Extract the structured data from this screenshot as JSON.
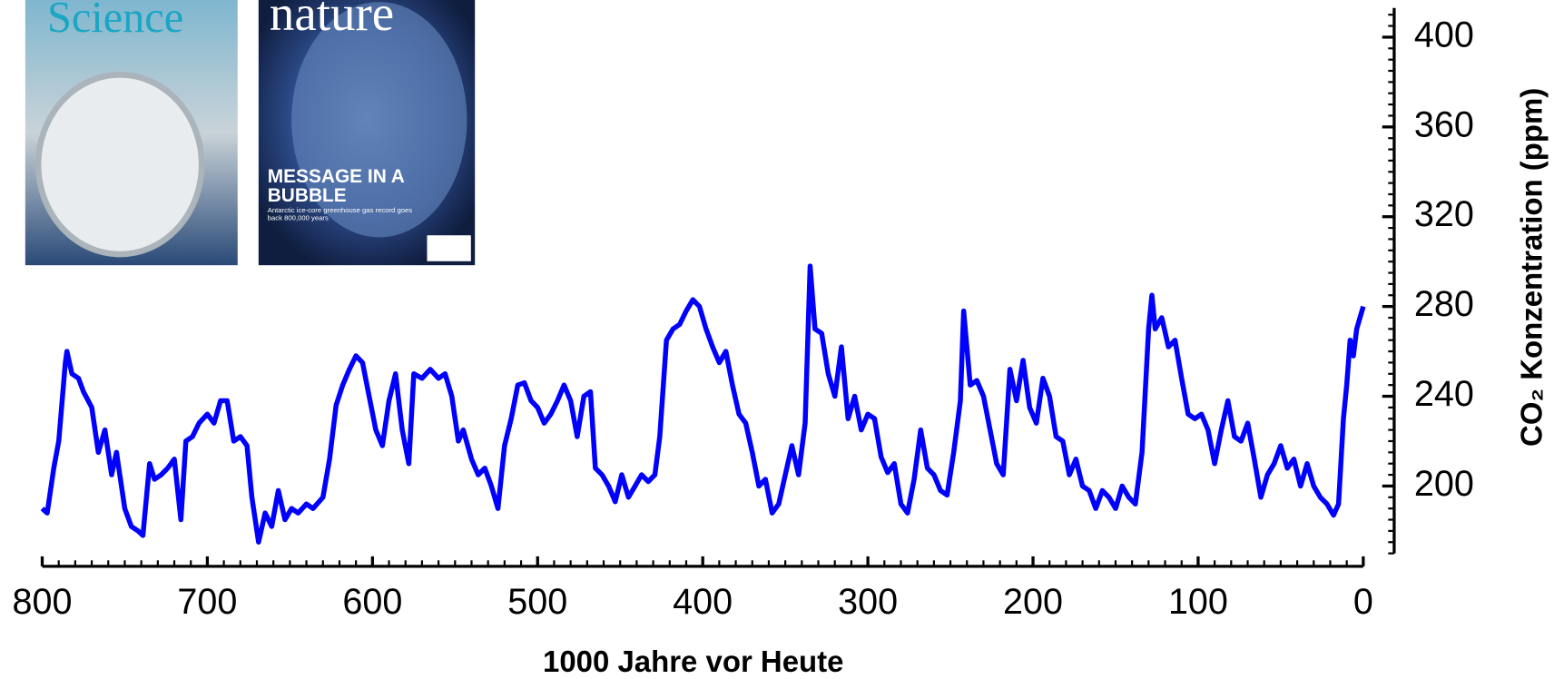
{
  "chart_data": {
    "type": "line",
    "xlabel": "1000 Jahre vor Heute",
    "ylabel": "CO₂ Konzentration (ppm)",
    "x": [
      800,
      797,
      793,
      790,
      786,
      785,
      782,
      778,
      775,
      770,
      766,
      762,
      758,
      755,
      750,
      746,
      742,
      739,
      735,
      732,
      728,
      724,
      720,
      716,
      713,
      709,
      705,
      700,
      696,
      692,
      688,
      684,
      680,
      676,
      673,
      669,
      665,
      661,
      657,
      653,
      649,
      645,
      640,
      636,
      630,
      626,
      622,
      618,
      614,
      610,
      606,
      602,
      598,
      594,
      590,
      586,
      582,
      578,
      575,
      570,
      565,
      560,
      556,
      552,
      548,
      545,
      540,
      536,
      532,
      528,
      524,
      520,
      516,
      512,
      508,
      504,
      500,
      496,
      492,
      488,
      484,
      480,
      476,
      472,
      468,
      465,
      461,
      457,
      453,
      449,
      445,
      441,
      437,
      433,
      429,
      426,
      422,
      418,
      414,
      410,
      406,
      402,
      398,
      394,
      390,
      386,
      382,
      378,
      374,
      370,
      366,
      362,
      358,
      354,
      350,
      346,
      342,
      338,
      335,
      332,
      328,
      324,
      320,
      316,
      312,
      308,
      304,
      300,
      296,
      292,
      288,
      284,
      280,
      276,
      272,
      268,
      264,
      260,
      256,
      252,
      248,
      244,
      242,
      238,
      234,
      230,
      226,
      222,
      218,
      214,
      210,
      206,
      202,
      198,
      194,
      190,
      186,
      182,
      178,
      174,
      170,
      166,
      162,
      158,
      154,
      150,
      146,
      142,
      138,
      134,
      130,
      128,
      126,
      122,
      118,
      114,
      110,
      106,
      102,
      98,
      94,
      90,
      86,
      82,
      78,
      74,
      70,
      66,
      62,
      58,
      54,
      50,
      46,
      42,
      38,
      34,
      30,
      26,
      22,
      18,
      15,
      12,
      10,
      8,
      6,
      4,
      2,
      0
    ],
    "series": [
      {
        "color": "#0000ff",
        "values": [
          190,
          188,
          208,
          220,
          255,
          260,
          250,
          248,
          242,
          235,
          215,
          225,
          205,
          215,
          190,
          182,
          180,
          178,
          210,
          203,
          205,
          208,
          212,
          185,
          220,
          222,
          228,
          232,
          228,
          238,
          238,
          220,
          222,
          218,
          195,
          175,
          188,
          182,
          198,
          185,
          190,
          188,
          192,
          190,
          195,
          212,
          236,
          245,
          252,
          258,
          255,
          240,
          225,
          218,
          238,
          250,
          225,
          210,
          250,
          248,
          252,
          248,
          250,
          240,
          220,
          225,
          212,
          205,
          208,
          200,
          190,
          218,
          230,
          245,
          246,
          238,
          235,
          228,
          232,
          238,
          245,
          238,
          222,
          240,
          242,
          208,
          205,
          200,
          193,
          205,
          195,
          200,
          205,
          202,
          205,
          222,
          265,
          270,
          272,
          278,
          283,
          280,
          270,
          262,
          255,
          260,
          245,
          232,
          228,
          215,
          200,
          203,
          188,
          192,
          205,
          218,
          205,
          228,
          298,
          270,
          268,
          250,
          240,
          262,
          230,
          240,
          225,
          232,
          230,
          213,
          206,
          210,
          192,
          188,
          203,
          225,
          208,
          205,
          198,
          196,
          215,
          238,
          278,
          245,
          247,
          240,
          225,
          210,
          205,
          252,
          238,
          256,
          235,
          228,
          248,
          240,
          222,
          220,
          205,
          212,
          200,
          198,
          190,
          198,
          195,
          190,
          200,
          195,
          192,
          215,
          270,
          285,
          270,
          275,
          262,
          265,
          248,
          232,
          230,
          232,
          225,
          210,
          225,
          238,
          222,
          220,
          228,
          212,
          195,
          205,
          210,
          218,
          208,
          212,
          200,
          210,
          200,
          195,
          192,
          187,
          192,
          230,
          245,
          265,
          258,
          270,
          275,
          280
        ]
      }
    ],
    "xlim": [
      800,
      0
    ],
    "xticks": [
      800,
      700,
      600,
      500,
      400,
      300,
      200,
      100,
      0
    ],
    "ylim": [
      170,
      413
    ],
    "yticks": [
      200,
      240,
      280,
      320,
      360,
      400
    ],
    "grid": false
  },
  "covers": [
    {
      "title": "Science"
    },
    {
      "title": "nature",
      "headline": "MESSAGE IN A BUBBLE",
      "subline": "Antarctic ice-core greenhouse gas record goes back 800,000 years"
    }
  ]
}
